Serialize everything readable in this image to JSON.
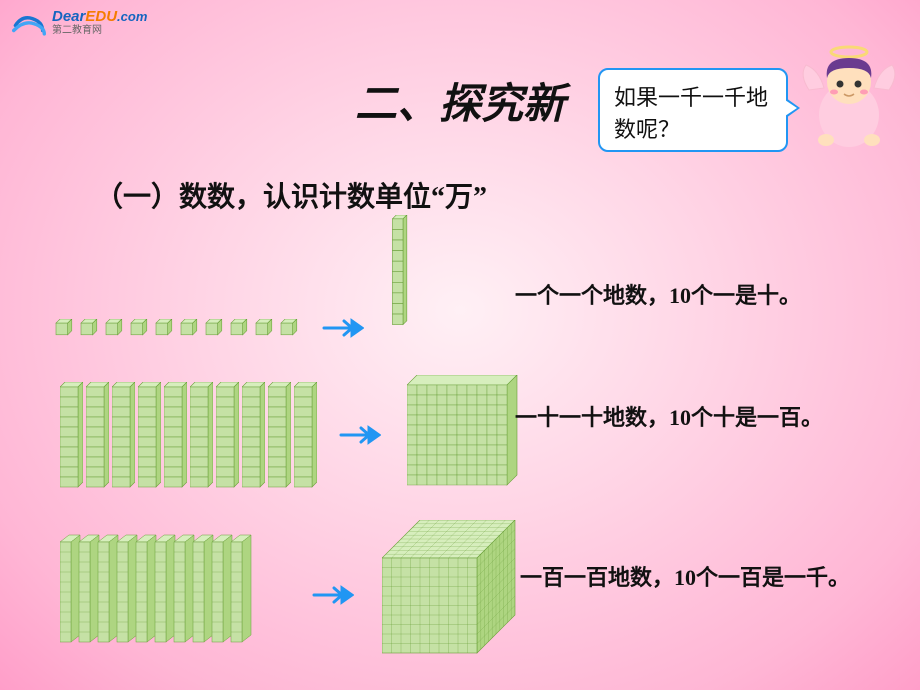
{
  "logo": {
    "brand_dear": "Dear",
    "brand_edu": "EDU",
    "brand_com": ".com",
    "sub": "第二教育网"
  },
  "title": "二、探究新",
  "subtitle": "（一）数数，认识计数单位“万”",
  "bubble": "如果一千一千地数呢？",
  "rows": {
    "r1": "一个一个地数，10个一是十。",
    "r2": "一十一十地数，10个十是一百。",
    "r3": "一百一百地数，10个一百是一千。"
  },
  "colors": {
    "cube_fill": "#c5e1a5",
    "cube_top": "#d7eebd",
    "cube_side": "#aed581",
    "cube_stroke": "#689f38",
    "arrow": "#2196f3",
    "bubble_border": "#2196f3",
    "bubble_bg": "#ffffff"
  },
  "counts": {
    "ones": 10,
    "tens": 10,
    "hundreds": 10
  }
}
